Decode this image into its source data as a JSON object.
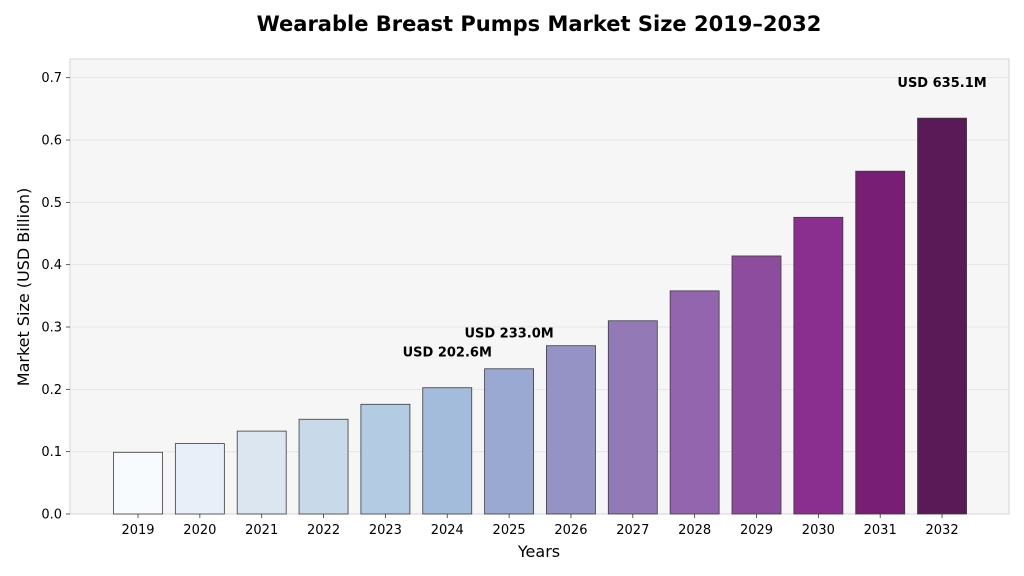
{
  "chart_data": {
    "type": "bar",
    "title": "Wearable Breast Pumps Market Size 2019–2032",
    "xlabel": "Years",
    "ylabel": "Market Size (USD Billion)",
    "categories": [
      "2019",
      "2020",
      "2021",
      "2022",
      "2023",
      "2024",
      "2025",
      "2026",
      "2027",
      "2028",
      "2029",
      "2030",
      "2031",
      "2032"
    ],
    "values": [
      0.099,
      0.113,
      0.133,
      0.152,
      0.176,
      0.2026,
      0.233,
      0.27,
      0.31,
      0.358,
      0.414,
      0.476,
      0.55,
      0.6351
    ],
    "bar_colors": [
      "#f7fbfd",
      "#e9eff8",
      "#dbe6f1",
      "#c8d9e9",
      "#b4cbe4",
      "#a4bcdb",
      "#9aa9d2",
      "#9592c6",
      "#9479b7",
      "#9365ae",
      "#8e4c9f",
      "#8a2e8f",
      "#781e74",
      "#5a1957"
    ],
    "ylim": [
      0,
      0.73
    ],
    "yticks": [
      0.0,
      0.1,
      0.2,
      0.3,
      0.4,
      0.5,
      0.6,
      0.7
    ],
    "ytick_labels": [
      "0.0",
      "0.1",
      "0.2",
      "0.3",
      "0.4",
      "0.5",
      "0.6",
      "0.7"
    ],
    "grid": true,
    "annotations": [
      {
        "category": "2024",
        "text": "USD 202.6M"
      },
      {
        "category": "2025",
        "text": "USD 233.0M"
      },
      {
        "category": "2032",
        "text": "USD 635.1M"
      }
    ]
  }
}
